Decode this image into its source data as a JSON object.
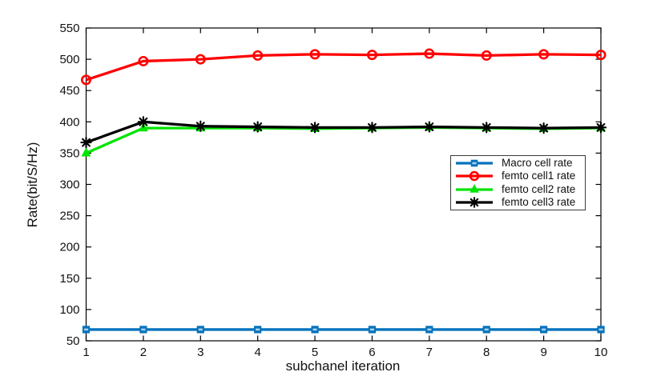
{
  "chart_data": {
    "type": "line",
    "title": "",
    "xlabel": "subchanel iteration",
    "ylabel": "Rate(bit/S/Hz)",
    "xlim": [
      1,
      10
    ],
    "ylim": [
      50,
      550
    ],
    "xticks": [
      1,
      2,
      3,
      4,
      5,
      6,
      7,
      8,
      9,
      10
    ],
    "yticks": [
      50,
      100,
      150,
      200,
      250,
      300,
      350,
      400,
      450,
      500,
      550
    ],
    "grid": false,
    "legend_position": "right-center-inside",
    "x": [
      1,
      2,
      3,
      4,
      5,
      6,
      7,
      8,
      9,
      10
    ],
    "series": [
      {
        "name": "Macro cell rate",
        "color": "#0072BD",
        "marker": "square",
        "values": [
          68,
          68,
          68,
          68,
          68,
          68,
          68,
          68,
          68,
          68
        ]
      },
      {
        "name": "femto cell1 rate",
        "color": "#FF0000",
        "marker": "circle",
        "values": [
          467,
          497,
          500,
          506,
          508,
          507,
          509,
          506,
          508,
          507
        ]
      },
      {
        "name": "femto cell2 rate",
        "color": "#00E400",
        "marker": "triangle-up",
        "values": [
          350,
          390,
          390,
          390,
          389,
          390,
          391,
          390,
          389,
          390
        ]
      },
      {
        "name": "femto cell3 rate",
        "color": "#000000",
        "marker": "asterisk",
        "values": [
          367,
          400,
          393,
          392,
          391,
          391,
          392,
          391,
          390,
          391
        ]
      }
    ]
  }
}
